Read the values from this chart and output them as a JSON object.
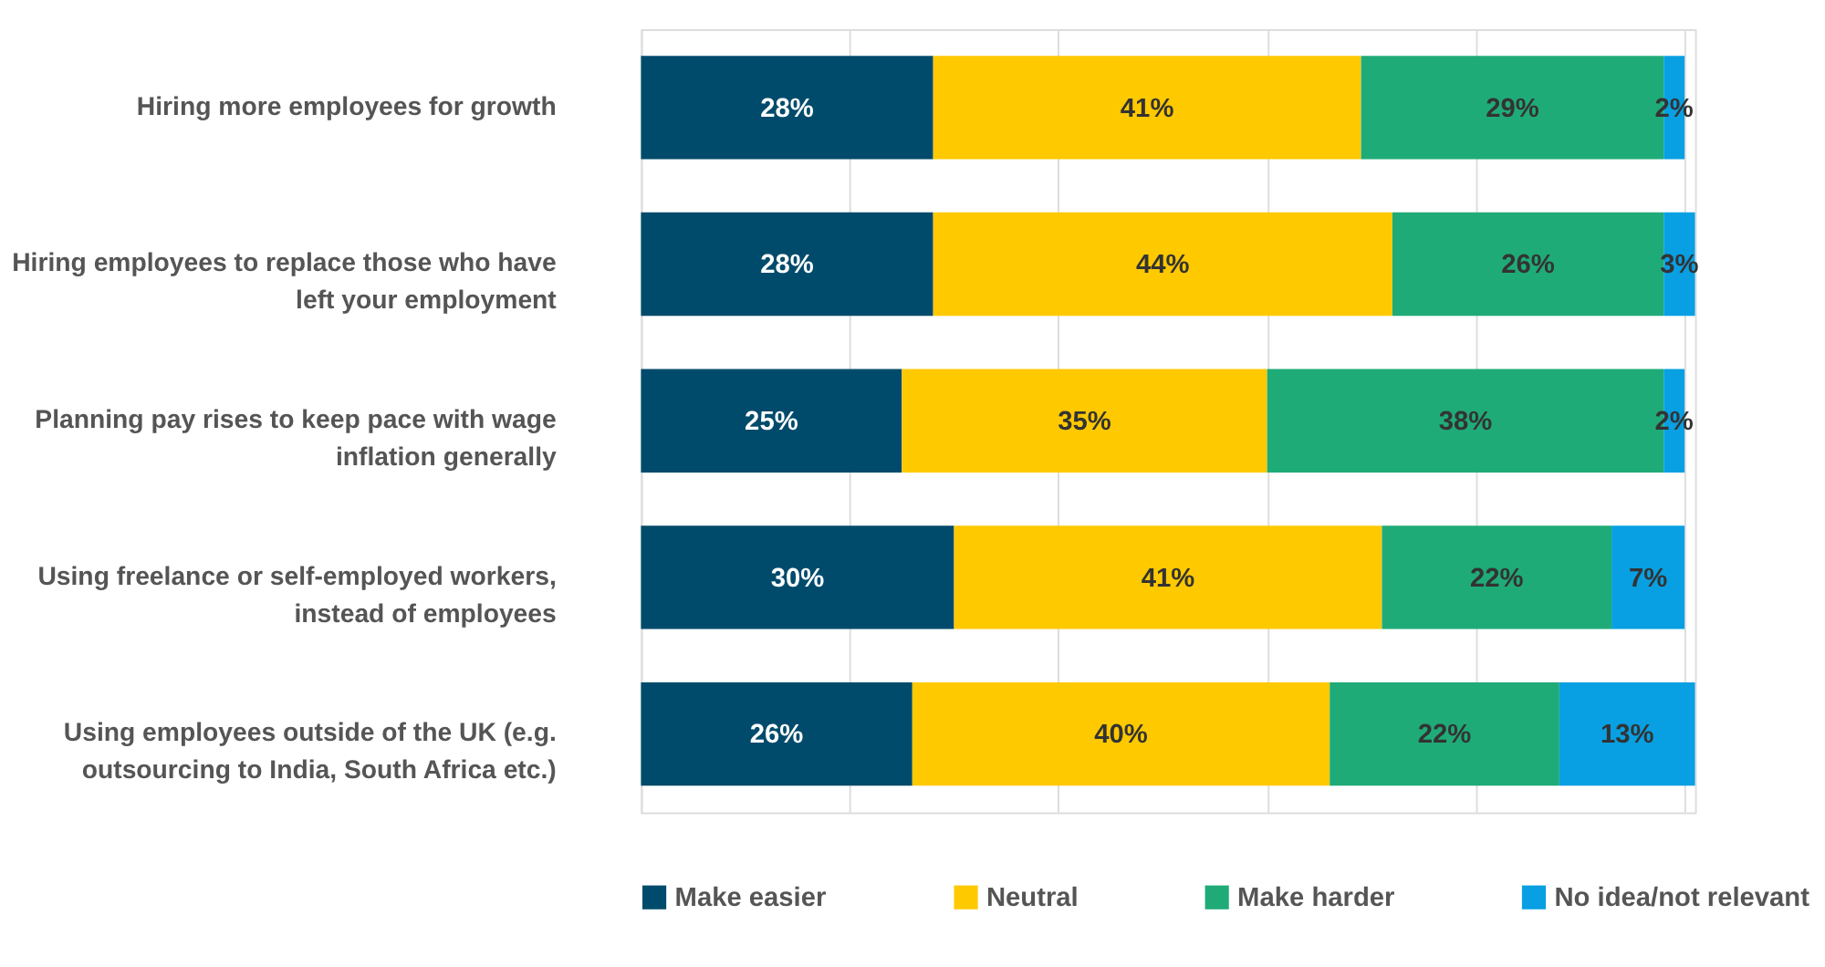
{
  "chart_data": {
    "type": "bar",
    "orientation": "horizontal",
    "stacked": true,
    "grid": "x",
    "legend": "bottom",
    "tick_labels": "y",
    "categories": [
      "Hiring more employees for growth",
      "Hiring employees to replace those who have left your employment",
      "Planning pay rises to keep pace with wage inflation generally",
      "Using freelance or self-employed workers, instead of employees",
      "Using employees outside of the UK (e.g. outsourcing to India, South Africa etc.)"
    ],
    "series": [
      {
        "name": "Make easier",
        "color": "#004b6b",
        "values": [
          28,
          28,
          25,
          30,
          26
        ],
        "value_labels": [
          "28%",
          "28%",
          "25%",
          "30%",
          "26%"
        ]
      },
      {
        "name": "Neutral",
        "color": "#ffc900",
        "values": [
          41,
          44,
          35,
          41,
          40
        ],
        "value_labels": [
          "41%",
          "44%",
          "35%",
          "41%",
          "40%"
        ]
      },
      {
        "name": "Make harder",
        "color": "#1fab78",
        "values": [
          29,
          26,
          38,
          22,
          22
        ],
        "value_labels": [
          "29%",
          "26%",
          "38%",
          "22%",
          "22%"
        ]
      },
      {
        "name": "No idea/not relevant",
        "color": "#08a0e2",
        "values": [
          2,
          3,
          2,
          7,
          13
        ],
        "value_labels": [
          "2%",
          "3%",
          "2%",
          "7%",
          "13%"
        ]
      }
    ]
  }
}
